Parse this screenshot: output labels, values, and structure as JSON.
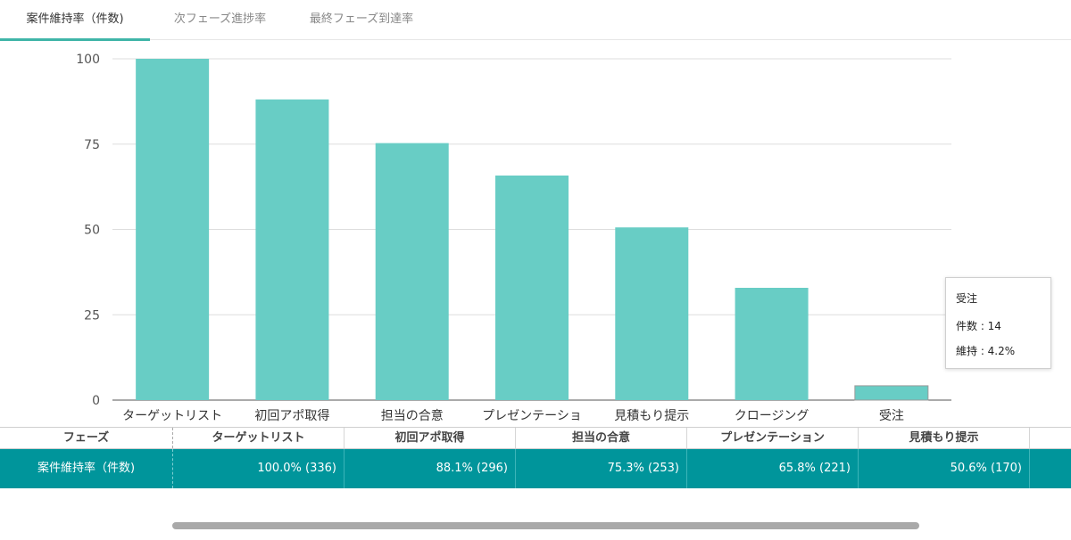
{
  "tabs": [
    {
      "label": "案件維持率（件数)",
      "active": true
    },
    {
      "label": "次フェーズ進捗率",
      "active": false
    },
    {
      "label": "最終フェーズ到達率",
      "active": false
    }
  ],
  "chart_data": {
    "type": "bar",
    "categories": [
      "ターゲットリスト",
      "初回アポ取得",
      "担当の合意",
      "プレゼンテーショ",
      "見積もり提示",
      "クロージング",
      "受注"
    ],
    "values": [
      100.0,
      88.1,
      75.3,
      65.8,
      50.6,
      32.9,
      4.2
    ],
    "ylim": [
      0,
      100
    ],
    "yticks": [
      0,
      25,
      50,
      75,
      100
    ],
    "grid": true,
    "bar_color": "#68cdc5",
    "highlight_index": 6
  },
  "tooltip": {
    "title": "受注",
    "count_line": "件数 : 14",
    "rate_line": "維持 : 4.2%"
  },
  "table": {
    "header": [
      "フェーズ",
      "ターゲットリスト",
      "初回アポ取得",
      "担当の合意",
      "プレゼンテーション",
      "見積もり提示"
    ],
    "row_label": "案件維持率（件数)",
    "row_values": [
      "100.0% (336)",
      "88.1% (296)",
      "75.3% (253)",
      "65.8% (221)",
      "50.6% (170)"
    ]
  },
  "colors": {
    "accent": "#3fb5a8",
    "table_row": "#00959b"
  }
}
